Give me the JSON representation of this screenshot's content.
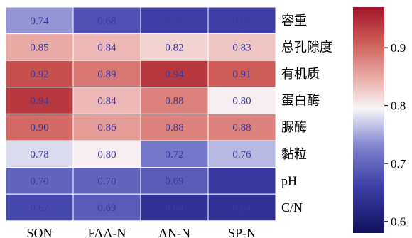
{
  "chart_data": {
    "type": "heatmap",
    "columns": [
      "SON",
      "FAA-N",
      "AN-N",
      "SP-N"
    ],
    "rows": [
      "容重",
      "总孔隙度",
      "有机质",
      "蛋白酶",
      "脲酶",
      "黏粒",
      "pH",
      "C/N"
    ],
    "values": [
      [
        0.74,
        0.68,
        0.66,
        0.66
      ],
      [
        0.85,
        0.84,
        0.82,
        0.83
      ],
      [
        0.92,
        0.89,
        0.94,
        0.91
      ],
      [
        0.94,
        0.84,
        0.88,
        0.8
      ],
      [
        0.9,
        0.86,
        0.88,
        0.88
      ],
      [
        0.78,
        0.8,
        0.72,
        0.76
      ],
      [
        0.7,
        0.7,
        0.69,
        0.65
      ],
      [
        0.67,
        0.69,
        0.64,
        0.64
      ]
    ],
    "labels": [
      [
        "0.74",
        "0.68",
        "0.66",
        "0.66"
      ],
      [
        "0.85",
        "0.84",
        "0.82",
        "0.83"
      ],
      [
        "0.92",
        "0.89",
        "0.94",
        "0.91"
      ],
      [
        "0.94",
        "0.84",
        "0.88",
        "0.80"
      ],
      [
        "0.90",
        "0.86",
        "0.88",
        "0.88"
      ],
      [
        "0.78",
        "0.80",
        "0.72",
        "0.76"
      ],
      [
        "0.70",
        "0.70",
        "0.69",
        "0.65"
      ],
      [
        "0.67",
        "0.69",
        "0.64",
        "0.64"
      ]
    ],
    "colorbar": {
      "colormap": "seismic-like blue-white-red",
      "range": [
        0.58,
        0.97
      ],
      "ticks": [
        0.9,
        0.8,
        0.7,
        0.6
      ],
      "tick_labels": [
        "0.9",
        "0.8",
        "0.7",
        "0.6"
      ]
    },
    "colors": {
      "low": "#1a1a6e",
      "mid_low": "#6f70c6",
      "mid": "#f7f7f7",
      "mid_high": "#e07a70",
      "high": "#b3172b"
    }
  }
}
